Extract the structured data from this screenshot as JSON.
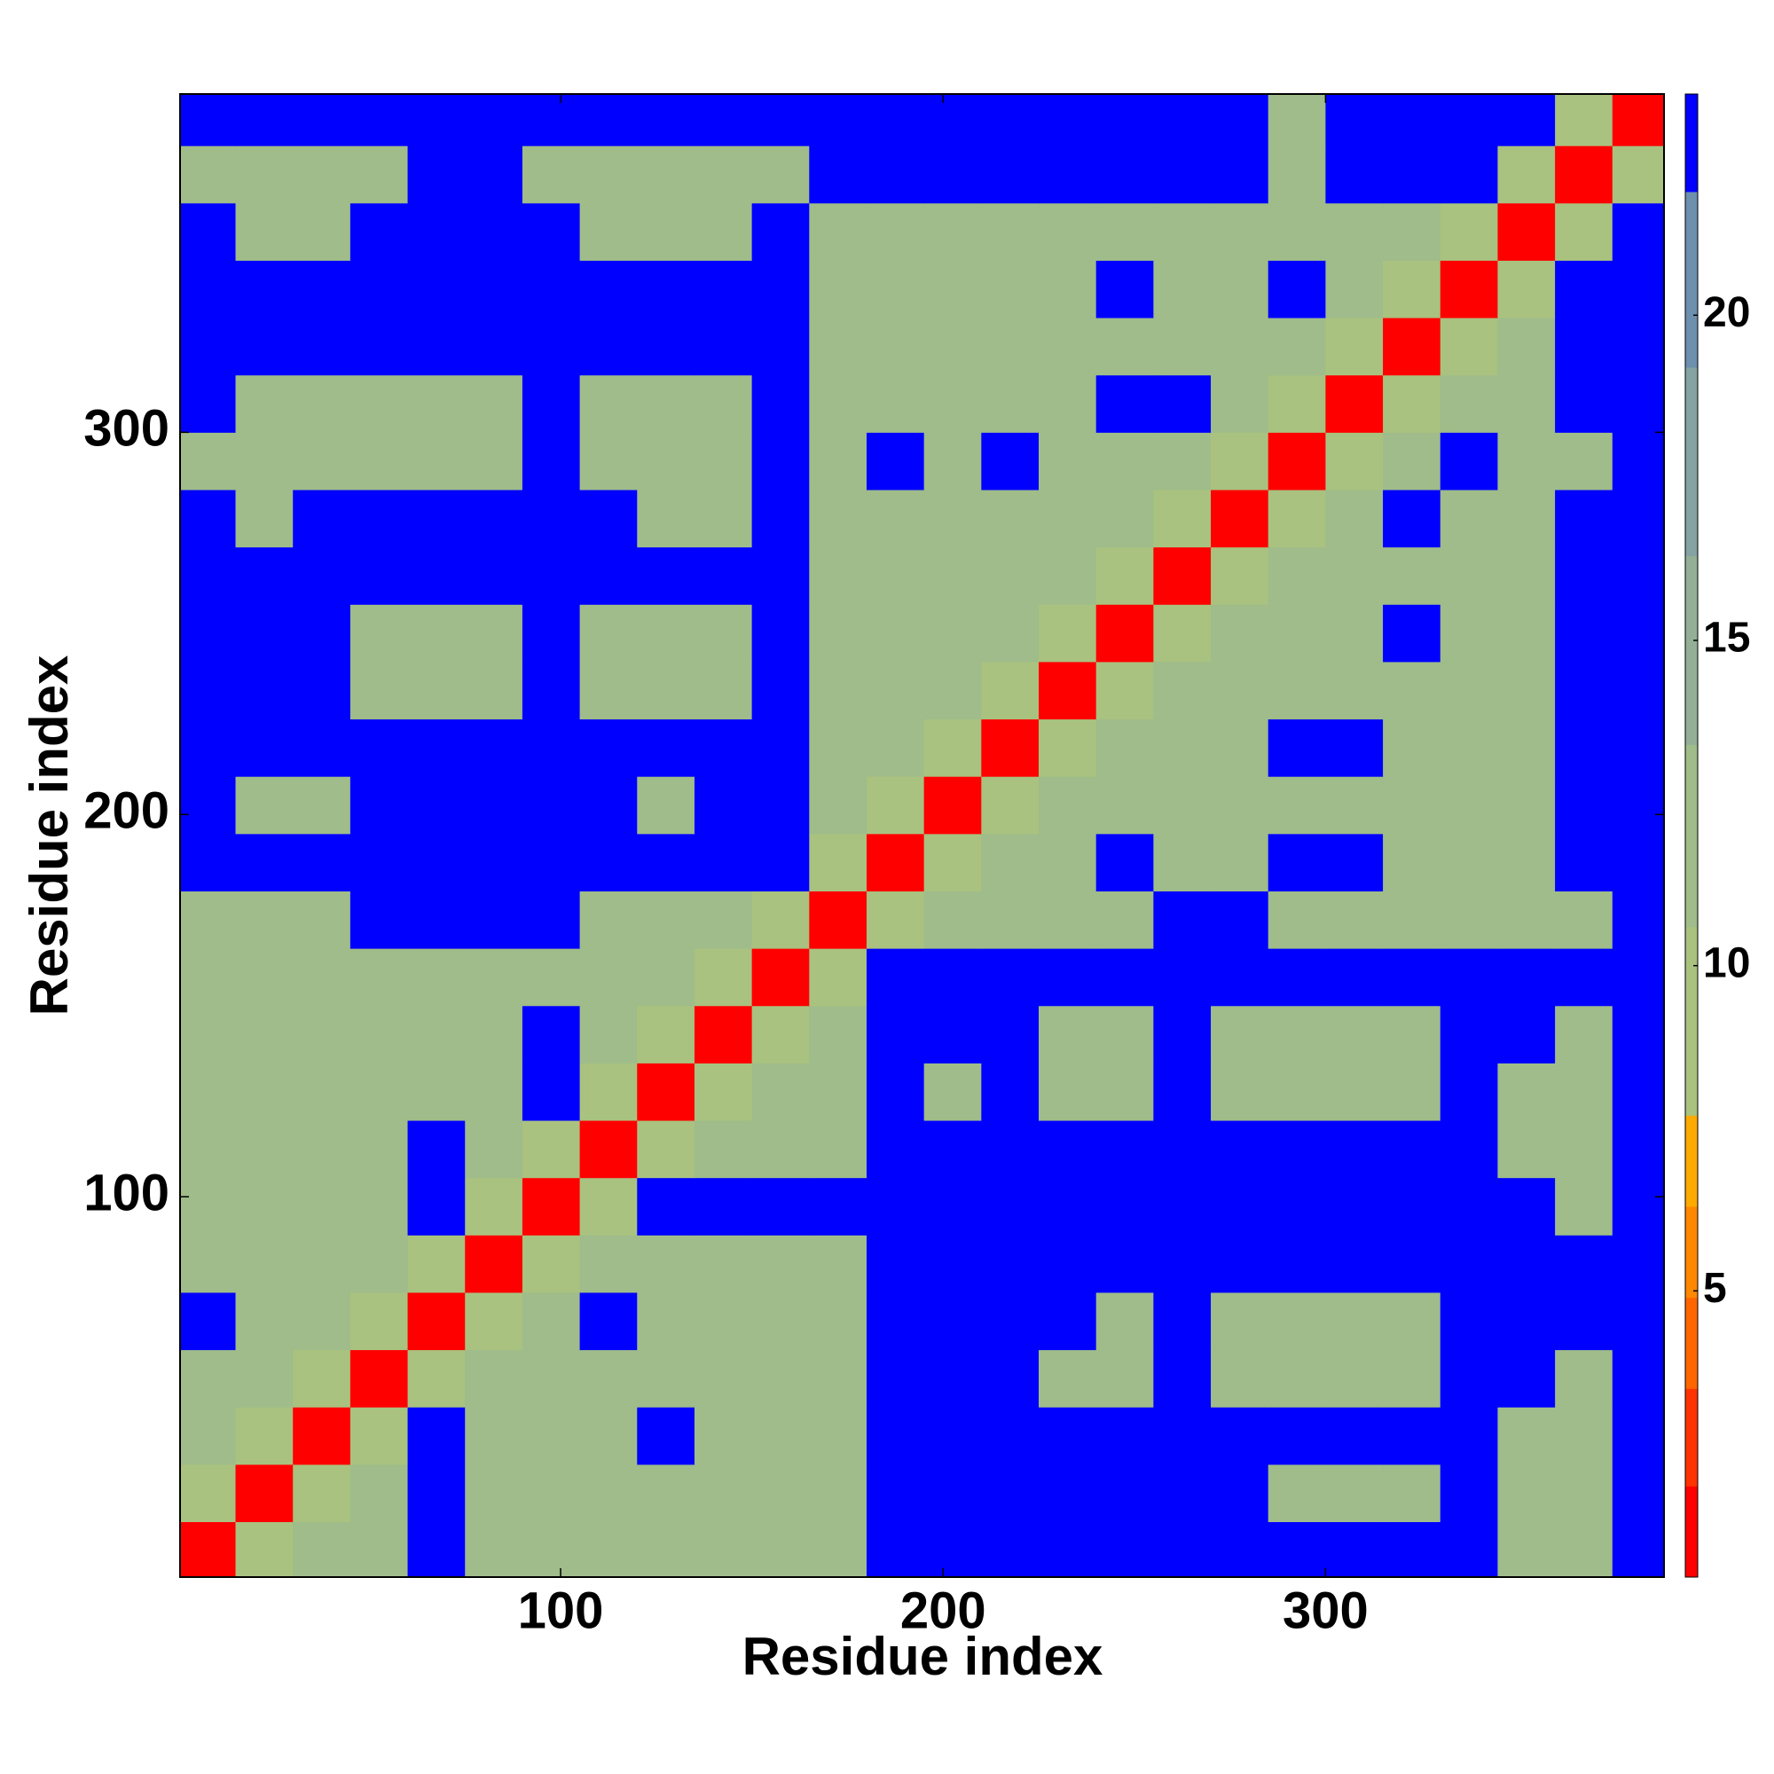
{
  "chart_data": {
    "type": "heatmap",
    "x_label": "Residue index",
    "y_label": "Residue index",
    "x": [
      7.5,
      22.5,
      37.5,
      52.5,
      67.5,
      82.5,
      97.5,
      112.5,
      127.5,
      142.5,
      157.5,
      172.5,
      187.5,
      202.5,
      217.5,
      232.5,
      247.5,
      262.5,
      277.5,
      292.5,
      307.5,
      322.5,
      337.5,
      352.5,
      367.5,
      382.5
    ],
    "y": [
      7.5,
      22.5,
      37.5,
      52.5,
      67.5,
      82.5,
      97.5,
      112.5,
      127.5,
      142.5,
      157.5,
      172.5,
      187.5,
      202.5,
      217.5,
      232.5,
      247.5,
      262.5,
      277.5,
      292.5,
      307.5,
      322.5,
      337.5,
      352.5,
      367.5,
      382.5
    ],
    "z": [
      [
        2,
        8,
        12,
        12,
        23,
        12,
        12,
        12,
        12,
        12,
        12,
        12,
        23,
        23,
        23,
        23,
        23,
        23,
        23,
        23,
        23,
        23,
        23,
        12,
        12,
        23
      ],
      [
        8,
        2,
        8,
        12,
        23,
        12,
        12,
        12,
        12,
        12,
        12,
        12,
        23,
        23,
        23,
        23,
        23,
        23,
        23,
        12,
        12,
        12,
        23,
        12,
        12,
        23
      ],
      [
        12,
        8,
        2,
        8,
        23,
        12,
        12,
        12,
        23,
        12,
        12,
        12,
        23,
        23,
        23,
        23,
        23,
        23,
        23,
        23,
        23,
        23,
        23,
        12,
        12,
        23
      ],
      [
        12,
        12,
        8,
        2,
        8,
        12,
        12,
        12,
        12,
        12,
        12,
        12,
        23,
        23,
        23,
        12,
        12,
        23,
        12,
        12,
        12,
        12,
        23,
        23,
        12,
        23
      ],
      [
        23,
        12,
        12,
        8,
        2,
        8,
        12,
        23,
        12,
        12,
        12,
        12,
        23,
        23,
        23,
        23,
        12,
        23,
        12,
        12,
        12,
        12,
        23,
        23,
        23,
        23
      ],
      [
        12,
        12,
        12,
        12,
        8,
        2,
        8,
        12,
        12,
        12,
        12,
        12,
        23,
        23,
        23,
        23,
        23,
        23,
        23,
        23,
        23,
        23,
        23,
        23,
        23,
        23
      ],
      [
        12,
        12,
        12,
        12,
        23,
        8,
        2,
        8,
        23,
        23,
        23,
        23,
        23,
        23,
        23,
        23,
        23,
        23,
        23,
        23,
        23,
        23,
        23,
        23,
        12,
        23
      ],
      [
        12,
        12,
        12,
        12,
        23,
        12,
        8,
        2,
        8,
        12,
        12,
        12,
        23,
        23,
        23,
        23,
        23,
        23,
        23,
        23,
        23,
        23,
        23,
        12,
        12,
        23
      ],
      [
        12,
        12,
        12,
        12,
        12,
        12,
        23,
        8,
        2,
        8,
        12,
        12,
        23,
        12,
        23,
        12,
        12,
        23,
        12,
        12,
        12,
        12,
        23,
        12,
        12,
        23
      ],
      [
        12,
        12,
        12,
        12,
        12,
        12,
        23,
        12,
        8,
        2,
        8,
        12,
        23,
        23,
        23,
        12,
        12,
        23,
        12,
        12,
        12,
        12,
        23,
        23,
        12,
        23
      ],
      [
        12,
        12,
        12,
        12,
        12,
        12,
        12,
        12,
        12,
        8,
        2,
        8,
        23,
        23,
        23,
        23,
        23,
        23,
        23,
        23,
        23,
        23,
        23,
        23,
        23,
        23
      ],
      [
        12,
        12,
        12,
        23,
        23,
        23,
        23,
        12,
        12,
        12,
        8,
        2,
        8,
        12,
        12,
        12,
        12,
        23,
        23,
        12,
        12,
        12,
        12,
        12,
        12,
        23
      ],
      [
        23,
        23,
        23,
        23,
        23,
        23,
        23,
        23,
        23,
        23,
        23,
        8,
        2,
        8,
        12,
        12,
        23,
        12,
        12,
        23,
        23,
        12,
        12,
        12,
        23,
        23
      ],
      [
        23,
        12,
        12,
        23,
        23,
        23,
        23,
        23,
        12,
        23,
        23,
        12,
        8,
        2,
        8,
        12,
        12,
        12,
        12,
        12,
        12,
        12,
        12,
        12,
        23,
        23
      ],
      [
        23,
        23,
        23,
        23,
        23,
        23,
        23,
        23,
        23,
        23,
        23,
        12,
        12,
        8,
        2,
        8,
        12,
        12,
        12,
        23,
        23,
        12,
        12,
        12,
        23,
        23
      ],
      [
        23,
        23,
        23,
        12,
        12,
        12,
        23,
        12,
        12,
        12,
        23,
        12,
        12,
        12,
        8,
        2,
        8,
        12,
        12,
        12,
        12,
        12,
        12,
        12,
        23,
        23
      ],
      [
        23,
        23,
        23,
        12,
        12,
        12,
        23,
        12,
        12,
        12,
        23,
        12,
        12,
        12,
        12,
        8,
        2,
        8,
        12,
        12,
        12,
        23,
        12,
        12,
        23,
        23
      ],
      [
        23,
        23,
        23,
        23,
        23,
        23,
        23,
        23,
        23,
        23,
        23,
        12,
        12,
        12,
        12,
        12,
        8,
        2,
        8,
        12,
        12,
        12,
        12,
        12,
        23,
        23
      ],
      [
        23,
        12,
        23,
        23,
        23,
        23,
        23,
        23,
        12,
        12,
        23,
        12,
        12,
        12,
        12,
        12,
        12,
        8,
        2,
        8,
        12,
        23,
        12,
        12,
        23,
        23
      ],
      [
        12,
        12,
        12,
        12,
        12,
        12,
        23,
        12,
        12,
        12,
        23,
        12,
        23,
        12,
        23,
        12,
        12,
        12,
        8,
        2,
        8,
        12,
        23,
        12,
        12,
        23
      ],
      [
        23,
        12,
        12,
        12,
        12,
        12,
        23,
        12,
        12,
        12,
        23,
        12,
        12,
        12,
        12,
        12,
        23,
        23,
        12,
        8,
        2,
        8,
        12,
        12,
        23,
        23
      ],
      [
        23,
        23,
        23,
        23,
        23,
        23,
        23,
        23,
        23,
        23,
        23,
        12,
        12,
        12,
        12,
        12,
        12,
        12,
        12,
        12,
        8,
        2,
        8,
        12,
        23,
        23
      ],
      [
        23,
        23,
        23,
        23,
        23,
        23,
        23,
        23,
        23,
        23,
        23,
        12,
        12,
        12,
        12,
        12,
        23,
        12,
        12,
        23,
        12,
        8,
        2,
        8,
        23,
        23
      ],
      [
        23,
        12,
        12,
        23,
        23,
        23,
        23,
        12,
        12,
        12,
        23,
        12,
        12,
        12,
        12,
        12,
        12,
        12,
        12,
        12,
        12,
        12,
        8,
        2,
        8,
        23
      ],
      [
        12,
        12,
        12,
        12,
        23,
        23,
        12,
        12,
        12,
        12,
        12,
        23,
        23,
        23,
        23,
        23,
        23,
        23,
        23,
        12,
        23,
        23,
        23,
        8,
        2,
        8
      ],
      [
        23,
        23,
        23,
        23,
        23,
        23,
        23,
        23,
        23,
        23,
        23,
        23,
        23,
        23,
        23,
        23,
        23,
        23,
        23,
        12,
        23,
        23,
        23,
        23,
        8,
        2
      ]
    ],
    "xlim": [
      0.5,
      388.5
    ],
    "ylim": [
      0.5,
      388.5
    ],
    "xticks": [
      100,
      200,
      300
    ],
    "yticks": [
      100,
      200,
      300
    ],
    "colorbar": {
      "lim": [
        0.6,
        23.4
      ],
      "levels": [
        0.6,
        2.0,
        3.5,
        4.9,
        6.3,
        7.7,
        10.6,
        13.4,
        16.3,
        19.2,
        21.9,
        23.4
      ],
      "colors": [
        "#ff0000",
        "#ff3300",
        "#ff6600",
        "#ff8800",
        "#ffaa00",
        "#a9c27f",
        "#9fbc8a",
        "#93b096",
        "#84a3a2",
        "#6d90ae",
        "#0000ff"
      ],
      "ticks": [
        5,
        10,
        15,
        20
      ]
    }
  }
}
